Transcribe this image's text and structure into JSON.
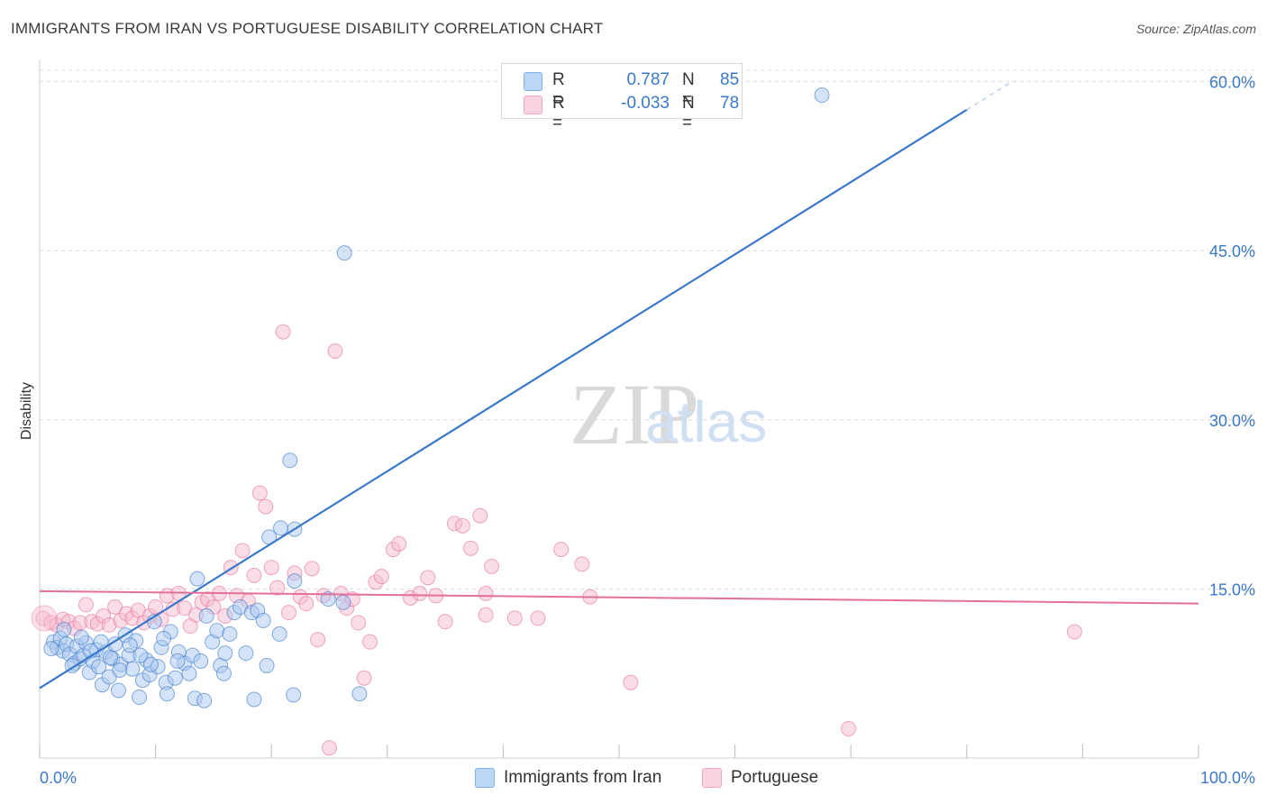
{
  "title": "IMMIGRANTS FROM IRAN VS PORTUGUESE DISABILITY CORRELATION CHART",
  "source": "Source: ZipAtlas.com",
  "watermark": {
    "zip": "ZIP",
    "atlas": "atlas"
  },
  "legend": {
    "r_label": "R =",
    "n_label": "N =",
    "rows": [
      {
        "r": "0.787",
        "n": "85",
        "color": "#7fb0ec"
      },
      {
        "r": "-0.033",
        "n": "78",
        "color": "#f4a6bf"
      }
    ]
  },
  "bottom_legend": [
    "Immigrants from Iran",
    "Portuguese"
  ],
  "chart_data": {
    "type": "scatter",
    "title": "IMMIGRANTS FROM IRAN VS PORTUGUESE DISABILITY CORRELATION CHART",
    "xlabel": "",
    "ylabel": "Disability",
    "xlim": [
      0,
      100
    ],
    "ylim": [
      0,
      61
    ],
    "x_tick_labels": [
      "0.0%",
      "100.0%"
    ],
    "y_ticks": [
      15,
      30,
      45,
      60
    ],
    "y_tick_labels": [
      "15.0%",
      "30.0%",
      "45.0%",
      "60.0%"
    ],
    "grid": true,
    "series": [
      {
        "name": "Immigrants from Iran",
        "color": "#3b78c8",
        "fill": "#a9c8f0",
        "trend": {
          "x0": 0,
          "y0": 6.2,
          "x1": 80,
          "y1": 57.5,
          "dash_to_x": 84
        },
        "points": [
          [
            1.2,
            10.3
          ],
          [
            1.5,
            9.8
          ],
          [
            1.8,
            10.6
          ],
          [
            2.0,
            9.5
          ],
          [
            2.3,
            10.1
          ],
          [
            2.6,
            9.2
          ],
          [
            3.0,
            8.4
          ],
          [
            3.2,
            9.9
          ],
          [
            3.5,
            8.8
          ],
          [
            3.8,
            9.1
          ],
          [
            4.0,
            10.2
          ],
          [
            4.3,
            7.6
          ],
          [
            4.6,
            8.6
          ],
          [
            4.9,
            9.6
          ],
          [
            5.1,
            8.1
          ],
          [
            5.4,
            6.5
          ],
          [
            5.7,
            9.4
          ],
          [
            6.0,
            7.2
          ],
          [
            6.3,
            8.8
          ],
          [
            6.5,
            10.1
          ],
          [
            6.8,
            6.0
          ],
          [
            7.0,
            8.3
          ],
          [
            7.4,
            10.9
          ],
          [
            7.7,
            9.1
          ],
          [
            8.0,
            7.9
          ],
          [
            8.3,
            10.4
          ],
          [
            8.6,
            5.4
          ],
          [
            8.9,
            6.9
          ],
          [
            9.2,
            8.7
          ],
          [
            9.5,
            7.4
          ],
          [
            9.9,
            12.1
          ],
          [
            10.2,
            8.1
          ],
          [
            10.5,
            9.8
          ],
          [
            10.9,
            6.7
          ],
          [
            11.3,
            11.2
          ],
          [
            11.7,
            7.1
          ],
          [
            12.0,
            9.4
          ],
          [
            12.5,
            8.4
          ],
          [
            12.9,
            7.5
          ],
          [
            13.2,
            9.1
          ],
          [
            13.6,
            15.9
          ],
          [
            13.9,
            8.6
          ],
          [
            14.4,
            12.6
          ],
          [
            14.9,
            10.3
          ],
          [
            15.3,
            11.3
          ],
          [
            15.6,
            8.2
          ],
          [
            15.9,
            7.5
          ],
          [
            16.4,
            11.0
          ],
          [
            16.8,
            12.9
          ],
          [
            17.3,
            13.4
          ],
          [
            17.8,
            9.3
          ],
          [
            18.3,
            12.9
          ],
          [
            18.8,
            13.1
          ],
          [
            19.3,
            12.2
          ],
          [
            19.8,
            19.6
          ],
          [
            13.4,
            5.3
          ],
          [
            14.2,
            5.1
          ],
          [
            11.0,
            5.7
          ],
          [
            21.9,
            5.6
          ],
          [
            27.6,
            5.7
          ],
          [
            20.7,
            11.0
          ],
          [
            22.0,
            15.7
          ],
          [
            24.9,
            14.1
          ],
          [
            26.2,
            13.8
          ],
          [
            26.3,
            44.8
          ],
          [
            20.8,
            20.4
          ],
          [
            22.0,
            20.3
          ],
          [
            21.6,
            26.4
          ],
          [
            18.5,
            5.2
          ],
          [
            67.5,
            58.8
          ],
          [
            1.0,
            9.7
          ],
          [
            2.1,
            11.4
          ],
          [
            2.8,
            8.2
          ],
          [
            3.6,
            10.7
          ],
          [
            4.4,
            9.5
          ],
          [
            5.3,
            10.3
          ],
          [
            6.1,
            8.9
          ],
          [
            6.9,
            7.8
          ],
          [
            7.8,
            10.0
          ],
          [
            8.7,
            9.1
          ],
          [
            9.6,
            8.3
          ],
          [
            10.7,
            10.6
          ],
          [
            11.9,
            8.6
          ],
          [
            16.0,
            9.3
          ],
          [
            19.6,
            8.2
          ]
        ]
      },
      {
        "name": "Portuguese",
        "color": "#e46f99",
        "fill": "#f6bccf",
        "trend": {
          "x0": 0,
          "y0": 14.8,
          "x1": 100,
          "y1": 13.7
        },
        "points": [
          [
            0.3,
            12.4
          ],
          [
            1.0,
            12.0
          ],
          [
            1.5,
            11.8
          ],
          [
            2.0,
            12.3
          ],
          [
            2.5,
            12.1
          ],
          [
            3.0,
            11.5
          ],
          [
            3.5,
            12.0
          ],
          [
            4.0,
            13.6
          ],
          [
            4.5,
            12.1
          ],
          [
            5.0,
            11.9
          ],
          [
            5.5,
            12.6
          ],
          [
            6.0,
            11.8
          ],
          [
            6.5,
            13.4
          ],
          [
            7.0,
            12.2
          ],
          [
            7.5,
            12.8
          ],
          [
            8.0,
            12.4
          ],
          [
            8.5,
            13.1
          ],
          [
            9.0,
            12.0
          ],
          [
            9.5,
            12.6
          ],
          [
            10.0,
            13.4
          ],
          [
            10.5,
            12.3
          ],
          [
            11.0,
            14.4
          ],
          [
            11.5,
            13.2
          ],
          [
            12.0,
            14.6
          ],
          [
            12.5,
            13.3
          ],
          [
            13.0,
            11.7
          ],
          [
            13.5,
            12.7
          ],
          [
            14.0,
            13.8
          ],
          [
            14.5,
            14.1
          ],
          [
            15.0,
            13.4
          ],
          [
            15.5,
            14.6
          ],
          [
            16.0,
            12.6
          ],
          [
            16.5,
            16.9
          ],
          [
            17.0,
            14.4
          ],
          [
            17.5,
            18.4
          ],
          [
            18.0,
            13.9
          ],
          [
            18.5,
            16.2
          ],
          [
            19.0,
            23.5
          ],
          [
            19.5,
            22.3
          ],
          [
            20.0,
            16.9
          ],
          [
            20.5,
            15.1
          ],
          [
            21.0,
            37.8
          ],
          [
            21.5,
            12.9
          ],
          [
            22.0,
            16.4
          ],
          [
            22.5,
            14.3
          ],
          [
            23.0,
            13.7
          ],
          [
            23.5,
            16.8
          ],
          [
            24.0,
            10.5
          ],
          [
            24.5,
            14.4
          ],
          [
            25.0,
            0.9
          ],
          [
            25.5,
            36.1
          ],
          [
            26.0,
            14.6
          ],
          [
            26.5,
            13.3
          ],
          [
            27.0,
            14.1
          ],
          [
            27.5,
            12.0
          ],
          [
            28.0,
            7.1
          ],
          [
            28.5,
            10.3
          ],
          [
            29.0,
            15.6
          ],
          [
            29.5,
            16.1
          ],
          [
            30.5,
            18.5
          ],
          [
            31.0,
            19.0
          ],
          [
            32.0,
            14.2
          ],
          [
            32.8,
            14.6
          ],
          [
            33.5,
            16.0
          ],
          [
            34.2,
            14.4
          ],
          [
            35.0,
            12.1
          ],
          [
            35.8,
            20.8
          ],
          [
            36.5,
            20.6
          ],
          [
            37.2,
            18.6
          ],
          [
            38.0,
            21.5
          ],
          [
            38.5,
            14.6
          ],
          [
            39.0,
            17.0
          ],
          [
            41.0,
            12.4
          ],
          [
            43.0,
            12.4
          ],
          [
            45.0,
            18.5
          ],
          [
            46.8,
            17.2
          ],
          [
            47.5,
            14.3
          ],
          [
            51.0,
            6.7
          ]
        ]
      }
    ],
    "extra_points": [
      {
        "series": 1,
        "x": 89.3,
        "y": 11.2
      },
      {
        "series": 1,
        "x": 69.8,
        "y": 2.6
      },
      {
        "series": 1,
        "x": 38.5,
        "y": 12.7
      }
    ]
  }
}
